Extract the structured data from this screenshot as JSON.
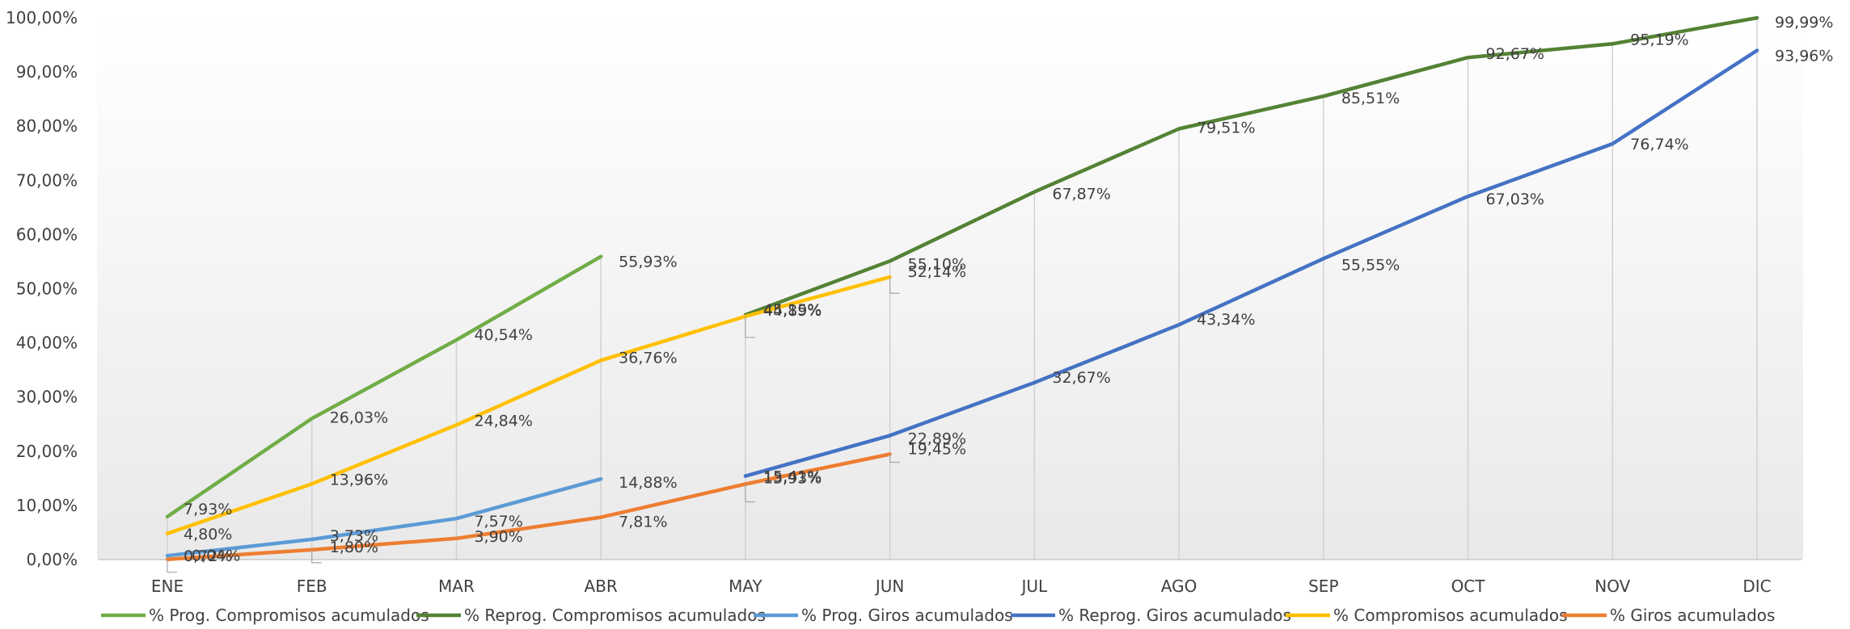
{
  "chart_data": {
    "type": "line",
    "categories": [
      "ENE",
      "FEB",
      "MAR",
      "ABR",
      "MAY",
      "JUN",
      "JUL",
      "AGO",
      "SEP",
      "OCT",
      "NOV",
      "DIC"
    ],
    "ylim": [
      0,
      100
    ],
    "yticks": [
      "0,00%",
      "10,00%",
      "20,00%",
      "30,00%",
      "40,00%",
      "50,00%",
      "60,00%",
      "70,00%",
      "80,00%",
      "90,00%",
      "100,00%"
    ],
    "grid": "vertical drop lines from points",
    "legend_position": "bottom",
    "series": [
      {
        "name": "% Prog. Compromisos acumulados",
        "color": "#70ad47",
        "values": [
          7.93,
          26.03,
          40.54,
          55.93,
          null,
          null,
          null,
          null,
          null,
          null,
          null,
          null
        ],
        "labels": [
          "7,93%",
          "26,03%",
          "40,54%",
          "55,93%",
          null,
          null,
          null,
          null,
          null,
          null,
          null,
          null
        ]
      },
      {
        "name": "% Reprog. Compromisos acumulados",
        "color": "#548235",
        "values": [
          null,
          null,
          null,
          null,
          45.15,
          55.1,
          67.87,
          79.51,
          85.51,
          92.67,
          95.19,
          99.99
        ],
        "labels": [
          null,
          null,
          null,
          null,
          "45,15%",
          "55,10%",
          "67,87%",
          "79,51%",
          "85,51%",
          "92,67%",
          "95,19%",
          "99,99%"
        ]
      },
      {
        "name": "% Prog. Giros acumulados",
        "color": "#5b9bd5",
        "values": [
          0.72,
          3.73,
          7.57,
          14.88,
          null,
          null,
          null,
          null,
          null,
          null,
          null,
          null
        ],
        "labels": [
          "0,72%",
          "3,73%",
          "7,57%",
          "14,88%",
          null,
          null,
          null,
          null,
          null,
          null,
          null,
          null
        ]
      },
      {
        "name": "% Reprog. Giros acumulados",
        "color": "#4472c4",
        "values": [
          null,
          null,
          null,
          null,
          15.41,
          22.89,
          32.67,
          43.34,
          55.55,
          67.03,
          76.74,
          93.96
        ],
        "labels": [
          null,
          null,
          null,
          null,
          "15,41%",
          "22,89%",
          "32,67%",
          "43,34%",
          "55,55%",
          "67,03%",
          "76,74%",
          "93,96%"
        ]
      },
      {
        "name": "% Compromisos acumulados",
        "color": "#ffc000",
        "values": [
          4.8,
          13.96,
          24.84,
          36.76,
          44.89,
          52.14,
          null,
          null,
          null,
          null,
          null,
          null
        ],
        "labels": [
          "4,80%",
          "13,96%",
          "24,84%",
          "36,76%",
          "44,89%",
          "52,14%",
          null,
          null,
          null,
          null,
          null,
          null
        ]
      },
      {
        "name": "% Giros acumulados",
        "color": "#ed7d31",
        "values": [
          0.04,
          1.8,
          3.9,
          7.81,
          13.93,
          19.45,
          null,
          null,
          null,
          null,
          null,
          null
        ],
        "labels": [
          "0,04%",
          "1,80%",
          "3,90%",
          "7,81%",
          "13,93%",
          "19,45%",
          null,
          null,
          null,
          null,
          null,
          null
        ]
      }
    ]
  }
}
